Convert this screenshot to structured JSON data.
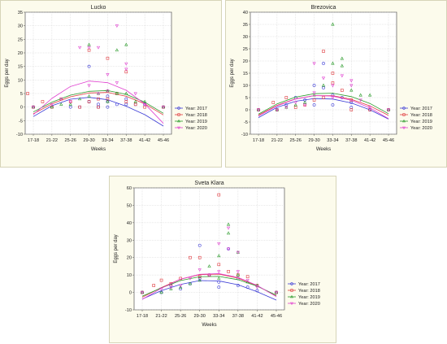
{
  "chart_data": [
    {
      "type": "scatter",
      "title": "Lucko",
      "xlabel": "Weeks",
      "ylabel": "Eggs per day",
      "categories": [
        "17-18",
        "21-22",
        "25-26",
        "29-30",
        "33-34",
        "37-38",
        "41-42",
        "45-46"
      ],
      "ylim": [
        -10,
        35
      ],
      "yticks": [
        -10,
        -5,
        0,
        5,
        10,
        15,
        20,
        25,
        30,
        35
      ],
      "grid": true,
      "legend_position": "right",
      "series": [
        {
          "name": "Year: 2017",
          "color": "#3b3bd6",
          "points": [
            [
              0,
              0
            ],
            [
              1,
              0
            ],
            [
              2,
              0
            ],
            [
              2.5,
              0
            ],
            [
              3,
              15
            ],
            [
              3,
              2
            ],
            [
              3.5,
              1
            ],
            [
              3.5,
              0
            ],
            [
              4,
              4
            ],
            [
              4,
              2
            ],
            [
              4,
              0
            ],
            [
              4.5,
              1
            ],
            [
              5,
              3
            ],
            [
              5,
              1
            ],
            [
              5.5,
              1
            ],
            [
              6,
              1
            ],
            [
              7,
              0
            ]
          ],
          "fit": [
            -3.5,
            0.5,
            2.9,
            3.6,
            2.7,
            0.3,
            -2.8,
            -7.0
          ]
        },
        {
          "name": "Year: 2018",
          "color": "#e0393e",
          "points": [
            [
              -0.3,
              5
            ],
            [
              0,
              0
            ],
            [
              0.5,
              2
            ],
            [
              1,
              0
            ],
            [
              1.5,
              3
            ],
            [
              2,
              2
            ],
            [
              2.5,
              0
            ],
            [
              3,
              21
            ],
            [
              3,
              2
            ],
            [
              3.5,
              3
            ],
            [
              3.5,
              0
            ],
            [
              4,
              18
            ],
            [
              4,
              3
            ],
            [
              4.5,
              5
            ],
            [
              5,
              13
            ],
            [
              5,
              2
            ],
            [
              5.5,
              1
            ],
            [
              6,
              0
            ],
            [
              7,
              0
            ]
          ],
          "fit": [
            -2.5,
            1.2,
            3.8,
            5.2,
            5.4,
            4.0,
            1.2,
            -2.9
          ]
        },
        {
          "name": "Year: 2019",
          "color": "#2a9a2a",
          "points": [
            [
              0,
              0
            ],
            [
              1,
              0
            ],
            [
              1.5,
              1
            ],
            [
              2,
              1
            ],
            [
              2.5,
              3
            ],
            [
              3,
              23
            ],
            [
              3,
              4
            ],
            [
              3.5,
              5
            ],
            [
              4,
              6
            ],
            [
              4,
              2
            ],
            [
              4.5,
              21
            ],
            [
              4.5,
              5
            ],
            [
              5,
              23
            ],
            [
              5,
              5
            ],
            [
              5.5,
              2
            ],
            [
              6,
              2
            ],
            [
              7,
              0
            ]
          ],
          "fit": [
            -1.8,
            1.8,
            4.4,
            5.8,
            6.1,
            4.7,
            1.8,
            -2.3
          ]
        },
        {
          "name": "Year: 2020",
          "color": "#e040d0",
          "points": [
            [
              0,
              0
            ],
            [
              1,
              1
            ],
            [
              1.5,
              3
            ],
            [
              2,
              2
            ],
            [
              2.5,
              22
            ],
            [
              3,
              22
            ],
            [
              3,
              8
            ],
            [
              3.5,
              22
            ],
            [
              3.5,
              5
            ],
            [
              4,
              12
            ],
            [
              4,
              6
            ],
            [
              4.5,
              30
            ],
            [
              4.5,
              9
            ],
            [
              5,
              16
            ],
            [
              5,
              14
            ],
            [
              5.5,
              5
            ],
            [
              6,
              1
            ],
            [
              7,
              0
            ]
          ],
          "fit": [
            -2.8,
            3.2,
            7.6,
            9.6,
            9.0,
            6.2,
            1.2,
            -6.0
          ]
        }
      ]
    },
    {
      "type": "scatter",
      "title": "Brezovica",
      "xlabel": "Weeks",
      "ylabel": "Eggs per day",
      "categories": [
        "17-18",
        "21-22",
        "25-26",
        "29-30",
        "33-34",
        "37-38",
        "41-42",
        "45-46"
      ],
      "ylim": [
        -10,
        40
      ],
      "yticks": [
        -10,
        -5,
        0,
        5,
        10,
        15,
        20,
        25,
        30,
        35,
        40
      ],
      "grid": true,
      "legend_position": "right",
      "series": [
        {
          "name": "Year: 2017",
          "color": "#3b3bd6",
          "points": [
            [
              0,
              0
            ],
            [
              1,
              0
            ],
            [
              1.5,
              2
            ],
            [
              2,
              5
            ],
            [
              2.5,
              4
            ],
            [
              3,
              10
            ],
            [
              3,
              2
            ],
            [
              3.5,
              19
            ],
            [
              3.5,
              9
            ],
            [
              4,
              6
            ],
            [
              4,
              2
            ],
            [
              4.5,
              5
            ],
            [
              5,
              3
            ],
            [
              5,
              1
            ],
            [
              6,
              0
            ],
            [
              7,
              0
            ]
          ],
          "fit": [
            -3.2,
            1.0,
            3.5,
            4.6,
            4.4,
            2.8,
            0.0,
            -3.8
          ]
        },
        {
          "name": "Year: 2018",
          "color": "#e0393e",
          "points": [
            [
              0,
              0
            ],
            [
              0.8,
              3
            ],
            [
              1,
              0
            ],
            [
              1.5,
              5
            ],
            [
              2,
              1
            ],
            [
              2.5,
              2
            ],
            [
              3,
              4
            ],
            [
              3.5,
              24
            ],
            [
              3.5,
              5
            ],
            [
              4,
              15
            ],
            [
              4,
              11
            ],
            [
              4.5,
              8
            ],
            [
              5,
              4
            ],
            [
              5,
              0
            ],
            [
              6,
              0
            ],
            [
              7,
              0
            ]
          ],
          "fit": [
            -2.2,
            1.8,
            4.5,
            5.8,
            5.8,
            4.3,
            1.6,
            -2.3
          ]
        },
        {
          "name": "Year: 2019",
          "color": "#2a9a2a",
          "points": [
            [
              0,
              0
            ],
            [
              1,
              0
            ],
            [
              1.5,
              1
            ],
            [
              2,
              2
            ],
            [
              2.5,
              3
            ],
            [
              3,
              6
            ],
            [
              3.5,
              10
            ],
            [
              4,
              35
            ],
            [
              4,
              19
            ],
            [
              4.5,
              21
            ],
            [
              4.5,
              18
            ],
            [
              5,
              8
            ],
            [
              5.5,
              6
            ],
            [
              6,
              6
            ],
            [
              7,
              0
            ]
          ],
          "fit": [
            -1.8,
            2.4,
            5.2,
            6.6,
            6.8,
            5.4,
            2.6,
            -1.6
          ]
        },
        {
          "name": "Year: 2020",
          "color": "#e040d0",
          "points": [
            [
              0,
              0
            ],
            [
              1,
              0
            ],
            [
              1.5,
              1
            ],
            [
              2,
              3
            ],
            [
              2.5,
              2
            ],
            [
              3,
              19
            ],
            [
              3,
              7
            ],
            [
              3.5,
              13
            ],
            [
              4,
              10
            ],
            [
              4,
              5
            ],
            [
              4.5,
              14
            ],
            [
              5,
              12
            ],
            [
              5,
              10
            ],
            [
              5.5,
              4
            ],
            [
              6,
              1
            ],
            [
              7,
              0
            ]
          ],
          "fit": [
            -2.6,
            1.6,
            4.4,
            5.8,
            5.6,
            3.9,
            0.8,
            -3.6
          ]
        }
      ]
    },
    {
      "type": "scatter",
      "title": "Sveta Klara",
      "xlabel": "Weeks",
      "ylabel": "Eggs per day",
      "categories": [
        "17-18",
        "21-22",
        "25-26",
        "29-30",
        "33-34",
        "37-38",
        "41-42",
        "45-46"
      ],
      "ylim": [
        -10,
        60
      ],
      "yticks": [
        -10,
        0,
        10,
        20,
        30,
        40,
        50,
        60
      ],
      "grid": true,
      "legend_position": "right",
      "series": [
        {
          "name": "Year: 2017",
          "color": "#3b3bd6",
          "points": [
            [
              0,
              0
            ],
            [
              1,
              0
            ],
            [
              1.5,
              4
            ],
            [
              2,
              2
            ],
            [
              2.5,
              5
            ],
            [
              3,
              27
            ],
            [
              3,
              8
            ],
            [
              3.5,
              10
            ],
            [
              4,
              6
            ],
            [
              4,
              3
            ],
            [
              4.5,
              25
            ],
            [
              5,
              8
            ],
            [
              5,
              4
            ],
            [
              5.5,
              3
            ],
            [
              6,
              1
            ],
            [
              7,
              0
            ]
          ],
          "fit": [
            -3.8,
            1.0,
            4.6,
            6.8,
            6.6,
            4.4,
            0.4,
            -4.4
          ]
        },
        {
          "name": "Year: 2018",
          "color": "#e0393e",
          "points": [
            [
              0,
              0
            ],
            [
              0.6,
              4
            ],
            [
              1,
              7
            ],
            [
              1.5,
              5
            ],
            [
              2,
              8
            ],
            [
              2.5,
              20
            ],
            [
              3,
              20
            ],
            [
              3,
              9
            ],
            [
              3.5,
              10
            ],
            [
              4,
              56
            ],
            [
              4,
              16
            ],
            [
              4.5,
              12
            ],
            [
              5,
              10
            ],
            [
              5.5,
              9
            ],
            [
              6,
              4
            ],
            [
              7,
              0
            ]
          ],
          "fit": [
            -2.8,
            2.8,
            7.6,
            10.2,
            10.5,
            8.2,
            3.8,
            -2.2
          ]
        },
        {
          "name": "Year: 2019",
          "color": "#2a9a2a",
          "points": [
            [
              0,
              0
            ],
            [
              1,
              0
            ],
            [
              1.5,
              2
            ],
            [
              2,
              3
            ],
            [
              2.5,
              5
            ],
            [
              3,
              7
            ],
            [
              3.5,
              15
            ],
            [
              4,
              21
            ],
            [
              4,
              8
            ],
            [
              4.5,
              39
            ],
            [
              4.5,
              34
            ],
            [
              5,
              23
            ],
            [
              5,
              10
            ],
            [
              5.5,
              6
            ],
            [
              6,
              4
            ],
            [
              7,
              0
            ]
          ],
          "fit": [
            -2.2,
            2.6,
            6.8,
            9.0,
            9.2,
            7.3,
            3.6,
            -1.6
          ]
        },
        {
          "name": "Year: 2020",
          "color": "#e040d0",
          "points": [
            [
              0,
              0
            ],
            [
              1,
              2
            ],
            [
              1.5,
              3
            ],
            [
              2,
              4
            ],
            [
              2.5,
              8
            ],
            [
              3,
              13
            ],
            [
              3.5,
              10
            ],
            [
              4,
              28
            ],
            [
              4,
              12
            ],
            [
              4.5,
              37
            ],
            [
              4.5,
              25
            ],
            [
              5,
              23
            ],
            [
              5,
              12
            ],
            [
              5.5,
              7
            ],
            [
              6,
              3
            ],
            [
              7,
              0
            ]
          ],
          "fit": [
            -4.0,
            2.4,
            7.6,
            10.4,
            10.8,
            8.6,
            4.0,
            -2.4
          ]
        }
      ]
    }
  ]
}
